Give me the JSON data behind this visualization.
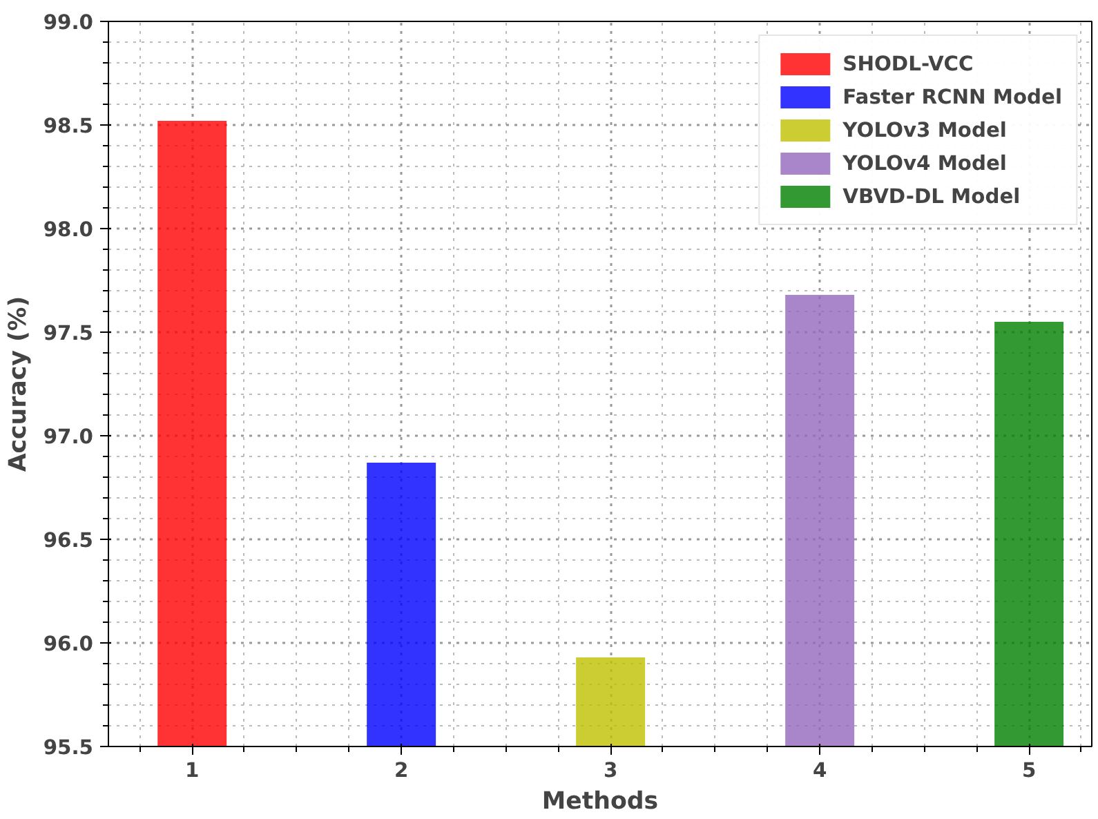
{
  "chart_data": {
    "type": "bar",
    "xlabel": "Methods",
    "ylabel": "Accuracy (%)",
    "series": [
      {
        "name": "SHODL-VCC",
        "color": "#ff0000",
        "x": [
          1
        ],
        "values": [
          98.52
        ]
      },
      {
        "name": "Faster RCNN Model",
        "color": "#0000ff",
        "x": [
          2
        ],
        "values": [
          96.87
        ]
      },
      {
        "name": "YOLOv3 Model",
        "color": "#bfbf00",
        "x": [
          3
        ],
        "values": [
          95.93
        ]
      },
      {
        "name": "YOLOv4 Model",
        "color": "#9467bd",
        "x": [
          4
        ],
        "values": [
          97.68
        ]
      },
      {
        "name": "VBVD-DL Model",
        "color": "#008000",
        "x": [
          5
        ],
        "values": [
          97.55
        ]
      }
    ],
    "xlim": [
      0.6,
      5.3
    ],
    "xticks": [
      1,
      2,
      3,
      4,
      5
    ],
    "ylim": [
      95.5,
      99.0
    ],
    "yticks": [
      {
        "value": 95.5,
        "label": "95.5"
      },
      {
        "value": 96,
        "label": "96.0"
      },
      {
        "value": 96.5,
        "label": "96.5"
      },
      {
        "value": 97,
        "label": "97.0"
      },
      {
        "value": 97.5,
        "label": "97.5"
      },
      {
        "value": 98,
        "label": "98.0"
      },
      {
        "value": 98.5,
        "label": "98.5"
      },
      {
        "value": 99,
        "label": "99.0"
      }
    ],
    "grid": true,
    "legend": "top right"
  }
}
